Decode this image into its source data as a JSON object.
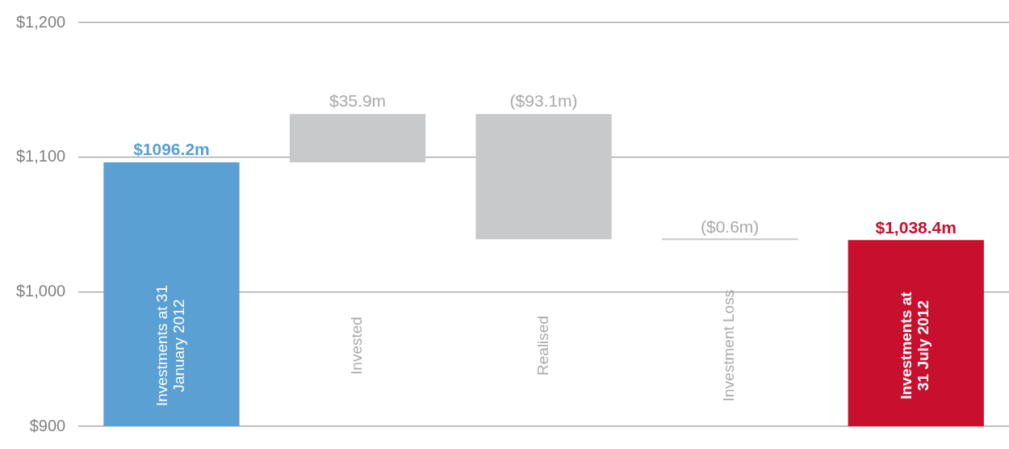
{
  "chart_data": {
    "type": "bar",
    "categories": [
      "Investments at 31 January 2012",
      "Invested",
      "Realised",
      "Investment Loss",
      "Investments at 31 July 2012"
    ],
    "values": [
      1096.2,
      35.9,
      -93.1,
      -0.6,
      1038.4
    ],
    "base": [
      0,
      1096.2,
      1132.1,
      1039.0,
      0
    ],
    "colors": [
      "#5aa0d3",
      "#c8c9cb",
      "#c8c9cb",
      "#c8c9cb",
      "#c8102e"
    ],
    "value_labels": [
      "$1096.2m",
      "$35.9m",
      "($93.1m)",
      "($0.6m)",
      "$1,038.4m"
    ],
    "ylim": [
      900,
      1200
    ],
    "yticks": [
      {
        "value": 900,
        "label": "$900"
      },
      {
        "value": 1000,
        "label": "$1,000"
      },
      {
        "value": 1100,
        "label": "$1,100"
      },
      {
        "value": 1200,
        "label": "$1,200"
      }
    ],
    "grid": "y",
    "legend": false
  }
}
